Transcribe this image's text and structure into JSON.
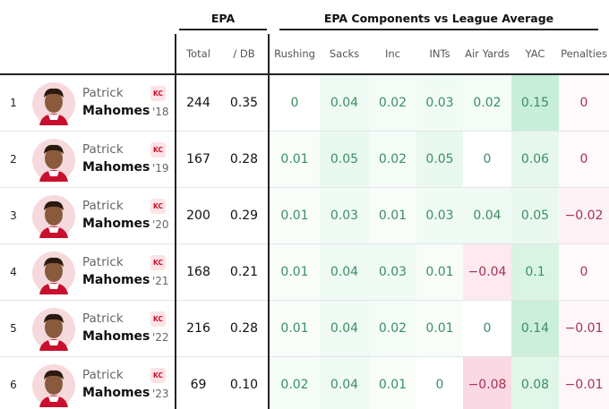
{
  "header": {
    "groups": [
      "EPA",
      "EPA Components vs League Average"
    ],
    "columns": [
      "Total",
      "/ DB",
      "Rushing",
      "Sacks",
      "Inc",
      "INTs",
      "Air Yards",
      "YAC",
      "Penalties"
    ]
  },
  "table": {
    "rows": [
      {
        "rank": "1",
        "first": "Patrick",
        "last": "Mahomes",
        "team": "KC",
        "year": "'18",
        "total": "244",
        "per_db": "0.35",
        "components": [
          "0",
          "0.04",
          "0.02",
          "0.03",
          "0.02",
          "0.15",
          "0"
        ]
      },
      {
        "rank": "2",
        "first": "Patrick",
        "last": "Mahomes",
        "team": "KC",
        "year": "'19",
        "total": "167",
        "per_db": "0.28",
        "components": [
          "0.01",
          "0.05",
          "0.02",
          "0.05",
          "0",
          "0.06",
          "0"
        ]
      },
      {
        "rank": "3",
        "first": "Patrick",
        "last": "Mahomes",
        "team": "KC",
        "year": "'20",
        "total": "200",
        "per_db": "0.29",
        "components": [
          "0.01",
          "0.03",
          "0.01",
          "0.03",
          "0.04",
          "0.05",
          "−0.02"
        ]
      },
      {
        "rank": "4",
        "first": "Patrick",
        "last": "Mahomes",
        "team": "KC",
        "year": "'21",
        "total": "168",
        "per_db": "0.21",
        "components": [
          "0.01",
          "0.04",
          "0.03",
          "0.01",
          "−0.04",
          "0.1",
          "0"
        ]
      },
      {
        "rank": "5",
        "first": "Patrick",
        "last": "Mahomes",
        "team": "KC",
        "year": "'22",
        "total": "216",
        "per_db": "0.28",
        "components": [
          "0.01",
          "0.04",
          "0.02",
          "0.01",
          "0",
          "0.14",
          "−0.01"
        ]
      },
      {
        "rank": "6",
        "first": "Patrick",
        "last": "Mahomes",
        "team": "KC",
        "year": "'23",
        "total": "69",
        "per_db": "0.10",
        "components": [
          "0.02",
          "0.04",
          "0.01",
          "0",
          "−0.08",
          "0.08",
          "−0.01"
        ]
      }
    ]
  }
}
